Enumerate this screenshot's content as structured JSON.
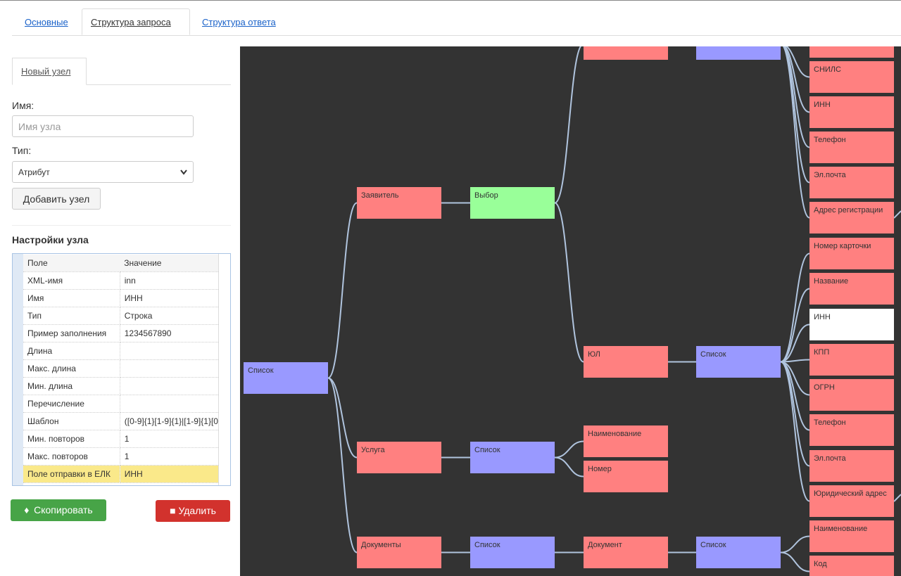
{
  "tabs": [
    "Основные",
    "Структура запроса",
    "Структура ответа"
  ],
  "form": {
    "tab": "Новый узел",
    "name_label": "Имя:",
    "name_placeholder": "Имя узла",
    "type_label": "Тип:",
    "type_value": "Атрибут",
    "add_button": "Добавить узел"
  },
  "settings": {
    "title": "Настройки узла",
    "columns": [
      "Поле",
      "Значение"
    ],
    "rows": [
      [
        "XML-имя",
        "inn"
      ],
      [
        "Имя",
        "ИНН"
      ],
      [
        "Тип",
        "Строка"
      ],
      [
        "Пример заполнения",
        "1234567890"
      ],
      [
        "Длина"
      ],
      [
        "Макс. длина"
      ],
      [
        "Мин. длина"
      ],
      [
        "Перечисление"
      ],
      [
        "Шаблон",
        "([0-9]{1}[1-9]{1}|[1-9]{1}[0"
      ],
      [
        "Мин. повторов",
        "1"
      ],
      [
        "Макс. повторов",
        "1"
      ],
      [
        "Поле отправки в ЕЛК",
        "ИНН"
      ]
    ]
  },
  "buttons": {
    "copy": "Скопировать",
    "delete": "Удалить"
  },
  "graph": {
    "nodes": [
      "Список",
      "Заявитель",
      "Выбор",
      "ЮЛ",
      "Список",
      "Услуга",
      "Список",
      "Наименование",
      "Номер",
      "Документы",
      "Список",
      "Документ",
      "Список",
      "СНИЛС",
      "ИНН",
      "Телефон",
      "Эл.почта",
      "Адрес регистрации",
      "Номер карточки",
      "Название",
      "ИНН",
      "КПП",
      "ОГРН",
      "Телефон",
      "Эл.почта",
      "Юридический адрес",
      "Наименование",
      "Код"
    ]
  }
}
